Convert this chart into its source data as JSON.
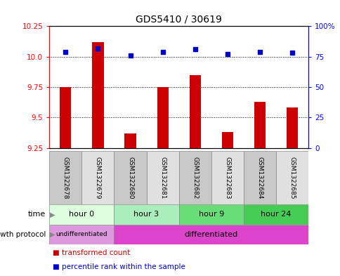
{
  "title": "GDS5410 / 30619",
  "samples": [
    "GSM1322678",
    "GSM1322679",
    "GSM1322680",
    "GSM1322681",
    "GSM1322682",
    "GSM1322683",
    "GSM1322684",
    "GSM1322685"
  ],
  "transformed_count": [
    9.75,
    10.12,
    9.37,
    9.75,
    9.85,
    9.38,
    9.63,
    9.58
  ],
  "percentile_rank": [
    79,
    82,
    76,
    79,
    81,
    77,
    79,
    78
  ],
  "ylim_left": [
    9.25,
    10.25
  ],
  "ylim_right": [
    0,
    100
  ],
  "yticks_left": [
    9.25,
    9.5,
    9.75,
    10.0,
    10.25
  ],
  "yticks_right": [
    0,
    25,
    50,
    75,
    100
  ],
  "ytick_labels_right": [
    "0",
    "25",
    "50",
    "75",
    "100%"
  ],
  "bar_color": "#cc0000",
  "dot_color": "#0000cc",
  "time_groups": [
    {
      "label": "hour 0",
      "start": 0,
      "end": 2,
      "color": "#ddffdd"
    },
    {
      "label": "hour 3",
      "start": 2,
      "end": 4,
      "color": "#aaeebb"
    },
    {
      "label": "hour 9",
      "start": 4,
      "end": 6,
      "color": "#66dd77"
    },
    {
      "label": "hour 24",
      "start": 6,
      "end": 8,
      "color": "#44cc55"
    }
  ],
  "undiff_color": "#dd99dd",
  "diff_color": "#dd44cc",
  "legend_bar_label": "transformed count",
  "legend_dot_label": "percentile rank within the sample",
  "label_time": "time",
  "label_growth": "growth protocol",
  "baseline": 9.25
}
